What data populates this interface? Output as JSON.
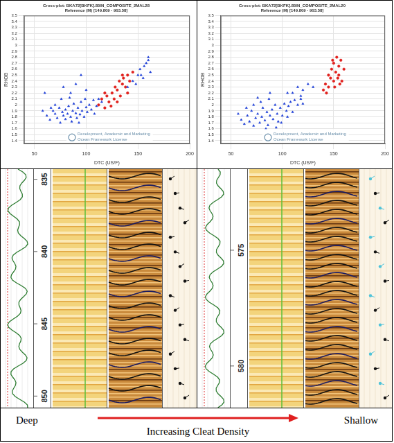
{
  "chart_data": [
    {
      "type": "scatter",
      "title": "Cross-plot: BKA72[BKFK].85IN_COMPOSITE_2MAL28",
      "subtitle": "Reference (M) [149.809 - 903.58]",
      "x_label": "DTC (US/F)",
      "y_label": "RHOB",
      "xlim": [
        40,
        200
      ],
      "xticks": [
        50,
        100,
        150,
        200
      ],
      "ylim": [
        1.35,
        3.5
      ],
      "yticks": [
        1.4,
        1.5,
        1.6,
        1.7,
        1.8,
        1.9,
        2,
        2.1,
        2.2,
        2.3,
        2.4,
        2.5,
        2.6,
        2.7,
        2.8,
        2.9,
        3,
        3.1,
        3.2,
        3.3,
        3.4,
        3.5
      ],
      "grid": true,
      "watermark": [
        "Development, Academic and Marketing",
        "Ocean Framework License"
      ],
      "series": [
        {
          "color": "#1f3fd6",
          "marker": "triangle",
          "x": [
            62,
            65,
            68,
            70,
            72,
            74,
            75,
            77,
            78,
            80,
            80,
            82,
            83,
            85,
            86,
            87,
            88,
            90,
            91,
            92,
            94,
            95,
            96,
            98,
            100,
            101,
            103,
            105,
            107,
            108,
            110,
            112,
            70,
            66,
            76,
            84,
            58,
            93,
            99,
            115,
            78,
            85,
            90,
            100,
            60,
            95,
            140,
            145,
            150,
            152,
            155,
            158,
            160,
            162,
            148,
            156,
            160,
            153
          ],
          "y": [
            1.82,
            1.75,
            1.9,
            1.85,
            1.78,
            1.95,
            1.7,
            1.88,
            1.82,
            1.76,
            1.92,
            1.85,
            1.98,
            1.8,
            1.72,
            1.9,
            2.02,
            1.86,
            1.78,
            1.95,
            1.84,
            2.05,
            1.9,
            1.8,
            1.96,
            1.88,
            2.0,
            1.92,
            2.08,
            1.85,
            1.98,
            2.1,
            2.0,
            1.95,
            2.1,
            2.12,
            1.9,
            1.7,
            2.1,
            2.05,
            2.3,
            2.2,
            2.35,
            2.25,
            2.2,
            2.5,
            2.3,
            2.4,
            2.5,
            2.6,
            2.45,
            2.7,
            2.8,
            2.55,
            2.35,
            2.65,
            2.75,
            2.5
          ]
        },
        {
          "color": "#e0201c",
          "marker": "circle",
          "x": [
            112,
            115,
            118,
            120,
            122,
            125,
            127,
            128,
            130,
            132,
            133,
            135,
            136,
            138,
            140,
            142,
            124,
            118,
            130,
            140,
            145,
            135
          ],
          "y": [
            2.0,
            2.1,
            1.95,
            2.15,
            2.05,
            2.2,
            2.1,
            2.3,
            2.25,
            2.4,
            2.15,
            2.35,
            2.45,
            2.3,
            2.5,
            2.4,
            1.98,
            2.2,
            2.05,
            2.2,
            2.55,
            2.5
          ]
        }
      ]
    },
    {
      "type": "scatter",
      "title": "Cross-plot: BKA72[BKFK].85IN_COMPOSITE_2MAL20",
      "subtitle": "Reference (M) [149.809 - 903.58]",
      "x_label": "DTC (US/F)",
      "y_label": "RHOB",
      "xlim": [
        40,
        200
      ],
      "xticks": [
        50,
        100,
        150,
        200
      ],
      "ylim": [
        1.35,
        3.5
      ],
      "yticks": [
        1.4,
        1.5,
        1.6,
        1.7,
        1.8,
        1.9,
        2,
        2.1,
        2.2,
        2.3,
        2.4,
        2.5,
        2.6,
        2.7,
        2.8,
        2.9,
        3,
        3.1,
        3.2,
        3.3,
        3.4,
        3.5
      ],
      "grid": true,
      "watermark": [
        "Development, Academic and Marketing",
        "Ocean Framework License"
      ],
      "series": [
        {
          "color": "#1f3fd6",
          "marker": "triangle",
          "x": [
            60,
            63,
            66,
            68,
            70,
            72,
            74,
            76,
            78,
            80,
            81,
            83,
            85,
            86,
            88,
            90,
            91,
            93,
            95,
            96,
            98,
            100,
            102,
            104,
            106,
            108,
            110,
            112,
            115,
            118,
            120,
            65,
            72,
            79,
            87,
            94,
            99,
            57,
            84,
            105,
            110,
            115,
            120,
            125,
            130,
            118,
            105,
            88,
            76
          ],
          "y": [
            1.75,
            1.68,
            1.82,
            1.72,
            1.9,
            1.65,
            1.78,
            1.85,
            1.7,
            1.8,
            1.95,
            1.74,
            1.88,
            1.66,
            1.82,
            1.92,
            1.76,
            2.0,
            1.85,
            1.72,
            1.95,
            1.82,
            2.02,
            1.9,
            1.98,
            2.05,
            1.88,
            2.08,
            2.0,
            2.1,
            2.02,
            1.95,
            2.0,
            2.05,
            2.1,
            1.62,
            1.7,
            1.85,
            1.6,
            1.8,
            2.2,
            2.3,
            2.25,
            2.35,
            2.3,
            2.15,
            2.2,
            2.2,
            2.12
          ]
        },
        {
          "color": "#e0201c",
          "marker": "circle",
          "x": [
            140,
            142,
            145,
            147,
            148,
            150,
            150,
            152,
            153,
            155,
            155,
            157,
            158,
            160,
            145,
            143,
            151,
            156,
            149,
            154
          ],
          "y": [
            2.25,
            2.35,
            2.3,
            2.45,
            2.6,
            2.4,
            2.7,
            2.55,
            2.8,
            2.5,
            2.65,
            2.75,
            2.4,
            2.6,
            2.5,
            2.2,
            2.3,
            2.35,
            2.75,
            2.45
          ]
        }
      ]
    }
  ],
  "log_panels": [
    {
      "depth_range": [
        834.3,
        850.8
      ],
      "depth_ticks": [
        835,
        840,
        845,
        850
      ]
    },
    {
      "depth_range": [
        571.5,
        581.8
      ],
      "depth_ticks": [
        575,
        580
      ]
    }
  ],
  "footer": {
    "left": "Deep",
    "right": "Shallow",
    "arrow_label": "Increasing Cleat Density"
  }
}
